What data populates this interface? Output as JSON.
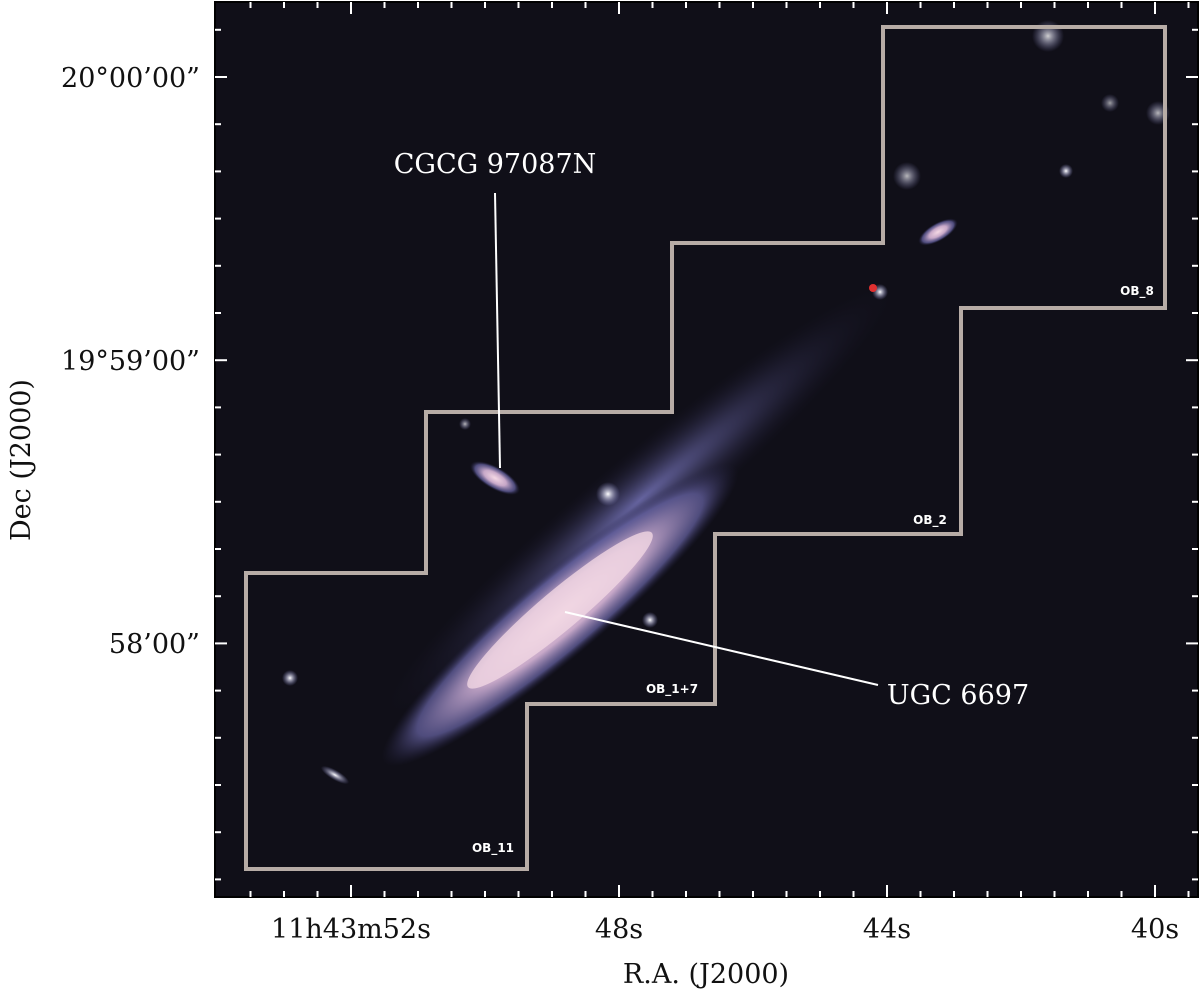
{
  "figure": {
    "x_axis": {
      "label": "R.A. (J2000)",
      "ticks": [
        "11h43m52s",
        "48s",
        "44s",
        "40s"
      ]
    },
    "y_axis": {
      "label": "Dec (J2000)",
      "ticks": [
        "20°00’00”",
        "19°59’00”",
        "58’00”"
      ]
    },
    "annotations": [
      "CGCG 97087N",
      "UGC 6697"
    ],
    "fields": [
      "OB_8",
      "OB_2",
      "OB_1+7",
      "OB_11"
    ]
  }
}
